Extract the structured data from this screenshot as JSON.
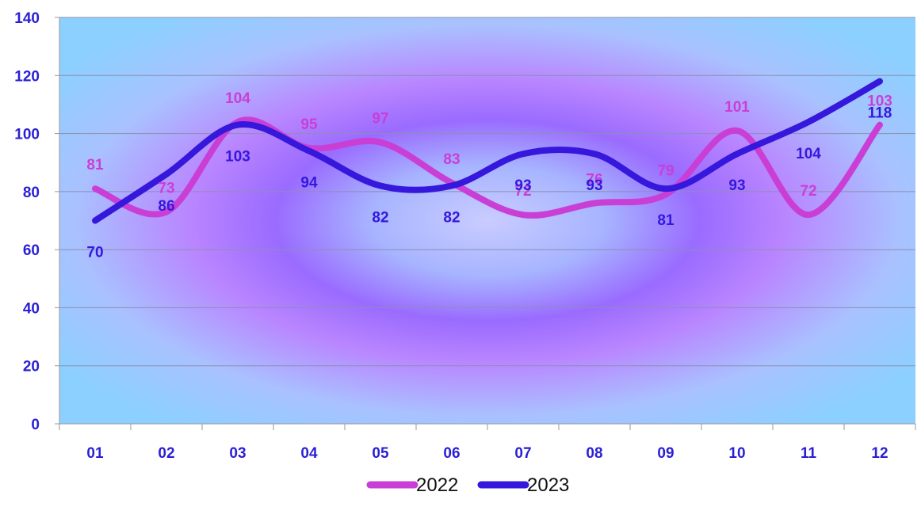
{
  "chart_data": {
    "type": "line",
    "categories": [
      "01",
      "02",
      "03",
      "04",
      "05",
      "06",
      "07",
      "08",
      "09",
      "10",
      "11",
      "12"
    ],
    "series": [
      {
        "name": "2022",
        "color": "#C93FD6",
        "values": [
          81,
          73,
          104,
          95,
          97,
          83,
          72,
          76,
          79,
          101,
          72,
          103
        ]
      },
      {
        "name": "2023",
        "color": "#3518DC",
        "values": [
          70,
          86,
          103,
          94,
          82,
          82,
          93,
          93,
          81,
          93,
          104,
          118
        ]
      }
    ],
    "title": "",
    "xlabel": "",
    "ylabel": "",
    "ylim": [
      0,
      140
    ],
    "yticks": [
      0,
      20,
      40,
      60,
      80,
      100,
      120,
      140
    ],
    "grid": true,
    "smooth": true,
    "data_labels": true,
    "legend_position": "bottom",
    "tick_label_color": "#2B1FD6",
    "background": "radial gradient: violet ring on light blue"
  }
}
